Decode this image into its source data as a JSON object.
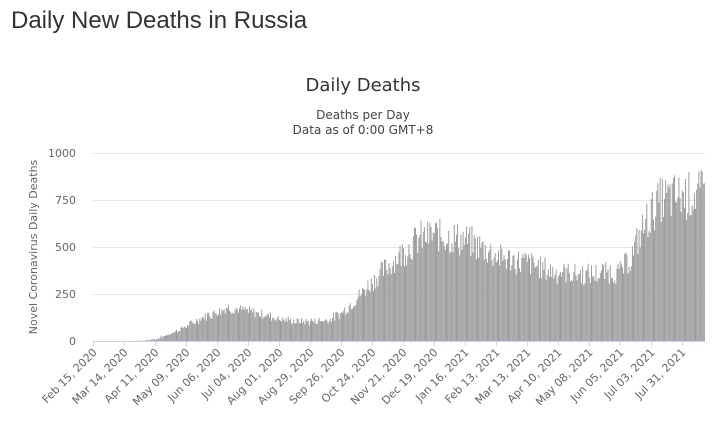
{
  "page": {
    "heading": "Daily New Deaths in Russia"
  },
  "chart_data": {
    "type": "bar",
    "title": "Daily Deaths",
    "subtitle_lines": [
      "Deaths per Day",
      "Data as of 0:00 GMT+8"
    ],
    "xlabel": "",
    "ylabel": "Novel Coronavirus Daily Deaths",
    "ylim": [
      0,
      1000
    ],
    "yticks": [
      0,
      250,
      500,
      750,
      1000
    ],
    "grid": true,
    "legend": "none",
    "bar_color": "#999999",
    "x_start": "2020-02-15",
    "x_end": "2021-08-20",
    "xtick_labels": [
      "Feb 15, 2020",
      "Mar 14, 2020",
      "Apr 11, 2020",
      "May 09, 2020",
      "Jun 06, 2020",
      "Jul 04, 2020",
      "Aug 01, 2020",
      "Aug 29, 2020",
      "Sep 26, 2020",
      "Oct 24, 2020",
      "Nov 21, 2020",
      "Dec 19, 2020",
      "Jan 16, 2021",
      "Feb 13, 2021",
      "Mar 13, 2021",
      "Apr 10, 2021",
      "May 08, 2021",
      "Jun 05, 2021",
      "Jul 03, 2021",
      "Jul 31, 2021"
    ],
    "series": [
      {
        "values_description": "daily values, one per day starting 2020-02-15, piecewise trend estimated from chart",
        "trend": [
          [
            "2020-02-15",
            0
          ],
          [
            "2020-03-20",
            0
          ],
          [
            "2020-04-01",
            2
          ],
          [
            "2020-04-11",
            10
          ],
          [
            "2020-04-25",
            40
          ],
          [
            "2020-05-09",
            80
          ],
          [
            "2020-05-25",
            130
          ],
          [
            "2020-06-06",
            160
          ],
          [
            "2020-06-15",
            180
          ],
          [
            "2020-07-04",
            160
          ],
          [
            "2020-07-20",
            140
          ],
          [
            "2020-08-01",
            120
          ],
          [
            "2020-08-15",
            105
          ],
          [
            "2020-08-29",
            105
          ],
          [
            "2020-09-15",
            115
          ],
          [
            "2020-09-26",
            150
          ],
          [
            "2020-10-10",
            230
          ],
          [
            "2020-10-24",
            320
          ],
          [
            "2020-11-07",
            400
          ],
          [
            "2020-11-21",
            480
          ],
          [
            "2020-12-05",
            550
          ],
          [
            "2020-12-19",
            570
          ],
          [
            "2021-01-01",
            560
          ],
          [
            "2021-01-16",
            540
          ],
          [
            "2021-02-01",
            500
          ],
          [
            "2021-02-13",
            460
          ],
          [
            "2021-03-01",
            430
          ],
          [
            "2021-03-13",
            420
          ],
          [
            "2021-04-01",
            380
          ],
          [
            "2021-04-10",
            370
          ],
          [
            "2021-05-08",
            355
          ],
          [
            "2021-05-25",
            370
          ],
          [
            "2021-06-05",
            370
          ],
          [
            "2021-06-15",
            450
          ],
          [
            "2021-06-25",
            600
          ],
          [
            "2021-07-03",
            690
          ],
          [
            "2021-07-12",
            760
          ],
          [
            "2021-07-31",
            780
          ],
          [
            "2021-08-20",
            790
          ]
        ]
      }
    ]
  }
}
